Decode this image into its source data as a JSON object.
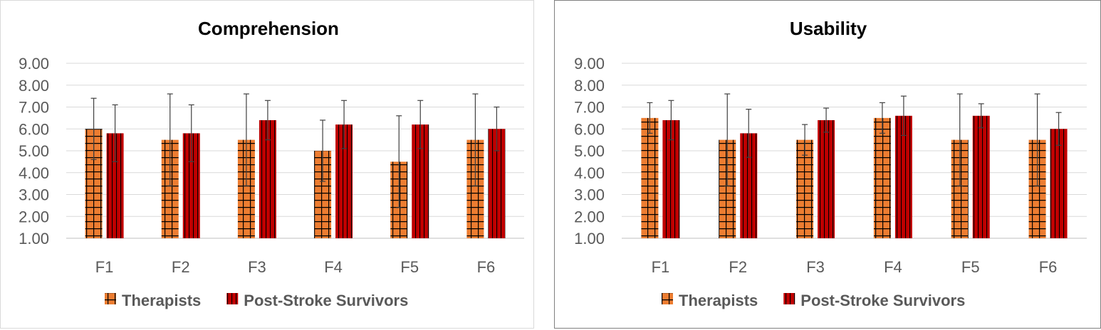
{
  "chart_data": [
    {
      "type": "bar",
      "title": "Comprehension",
      "categories": [
        "F1",
        "F2",
        "F3",
        "F4",
        "F5",
        "F6"
      ],
      "ylim": [
        1.0,
        9.0
      ],
      "yticks": [
        "1.00",
        "2.00",
        "3.00",
        "4.00",
        "5.00",
        "6.00",
        "7.00",
        "8.00",
        "9.00"
      ],
      "grid": true,
      "legend_position": "bottom",
      "series": [
        {
          "name": "Therapists",
          "color": "#ED7D31",
          "pattern": "grid",
          "values": [
            6.0,
            5.5,
            5.5,
            5.0,
            4.5,
            5.5
          ],
          "error": [
            1.4,
            2.1,
            2.1,
            1.4,
            2.1,
            2.1
          ]
        },
        {
          "name": "Post-Stroke Survivors",
          "color": "#C00000",
          "pattern": "vertical",
          "values": [
            5.8,
            5.8,
            6.4,
            6.2,
            6.2,
            6.0
          ],
          "error": [
            1.3,
            1.3,
            0.9,
            1.1,
            1.1,
            1.0
          ]
        }
      ]
    },
    {
      "type": "bar",
      "title": "Usability",
      "categories": [
        "F1",
        "F2",
        "F3",
        "F4",
        "F5",
        "F6"
      ],
      "ylim": [
        1.0,
        9.0
      ],
      "yticks": [
        "1.00",
        "2.00",
        "3.00",
        "4.00",
        "5.00",
        "6.00",
        "7.00",
        "8.00",
        "9.00"
      ],
      "grid": true,
      "legend_position": "bottom",
      "series": [
        {
          "name": "Therapists",
          "color": "#ED7D31",
          "pattern": "grid",
          "values": [
            6.5,
            5.5,
            5.5,
            6.5,
            5.5,
            5.5
          ],
          "error": [
            0.7,
            2.1,
            0.7,
            0.7,
            2.1,
            2.1
          ]
        },
        {
          "name": "Post-Stroke Survivors",
          "color": "#C00000",
          "pattern": "vertical",
          "values": [
            6.4,
            5.8,
            6.4,
            6.6,
            6.6,
            6.0
          ],
          "error": [
            0.9,
            1.1,
            0.55,
            0.9,
            0.55,
            0.75
          ]
        }
      ]
    }
  ]
}
